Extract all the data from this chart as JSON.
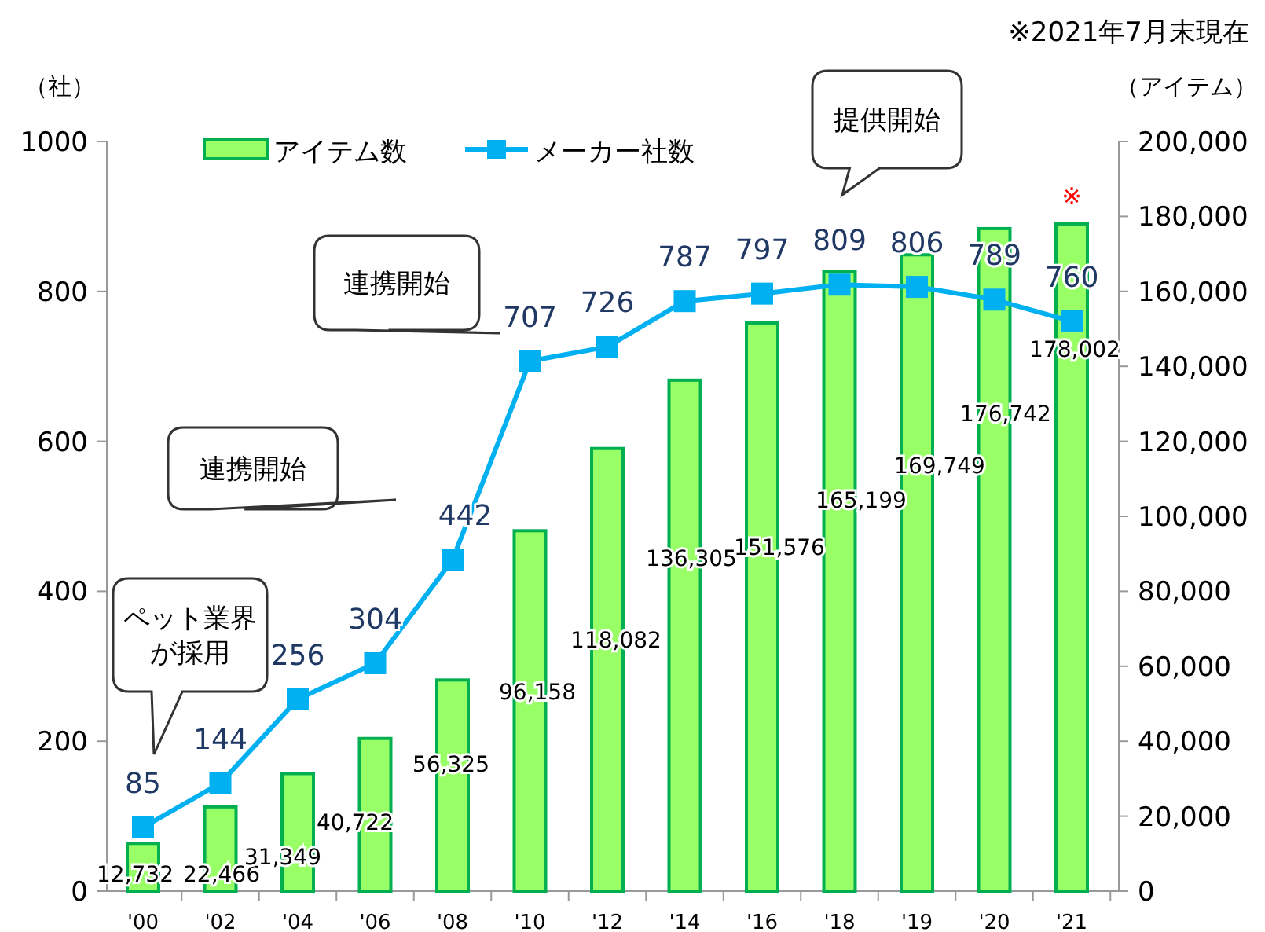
{
  "chart_data": {
    "type": "bar",
    "categories": [
      "'00",
      "'02",
      "'04",
      "'06",
      "'08",
      "'10",
      "'12",
      "'14",
      "'16",
      "'18",
      "'19",
      "'20",
      "'21"
    ],
    "series": [
      {
        "name": "アイテム数",
        "axis": "y2",
        "color": "#99ff66",
        "values": [
          12732,
          22466,
          31349,
          40722,
          56325,
          96158,
          118082,
          136305,
          151576,
          165199,
          169749,
          176742,
          178002
        ],
        "value_labels": [
          "12,732",
          "22,466",
          "31,349",
          "40,722",
          "56,325",
          "96,158",
          "118,082",
          "136,305",
          "151,576",
          "165,199",
          "169,749",
          "176,742",
          "178,002"
        ]
      },
      {
        "name": "メーカー社数",
        "type": "line",
        "color": "#00b0f0",
        "values": [
          85,
          144,
          256,
          304,
          442,
          707,
          726,
          787,
          797,
          809,
          806,
          789,
          760
        ]
      }
    ],
    "ylabel": "（社）",
    "y2label": "（アイテム）",
    "ylim": [
      0,
      1000
    ],
    "yticks": [
      0,
      200,
      400,
      600,
      800,
      1000
    ],
    "y2lim": [
      0,
      200000
    ],
    "y2ticks": [
      {
        "value": 0,
        "label": "0"
      },
      {
        "value": 20000,
        "label": "20,000"
      },
      {
        "value": 40000,
        "label": "40,000"
      },
      {
        "value": 60000,
        "label": "60,000"
      },
      {
        "value": 80000,
        "label": "80,000"
      },
      {
        "value": 100000,
        "label": "100,000"
      },
      {
        "value": 120000,
        "label": "120,000"
      },
      {
        "value": 140000,
        "label": "140,000"
      },
      {
        "value": 160000,
        "label": "160,000"
      },
      {
        "value": 180000,
        "label": "180,000"
      },
      {
        "value": 200000,
        "label": "200,000"
      }
    ],
    "data_labels": true,
    "marker": "square",
    "legend": "top left",
    "grid": false,
    "annotations": [
      "※2021年7月末現在",
      "ペット業界が採用",
      "連携開始",
      "連携開始",
      "提供開始",
      "※"
    ]
  }
}
